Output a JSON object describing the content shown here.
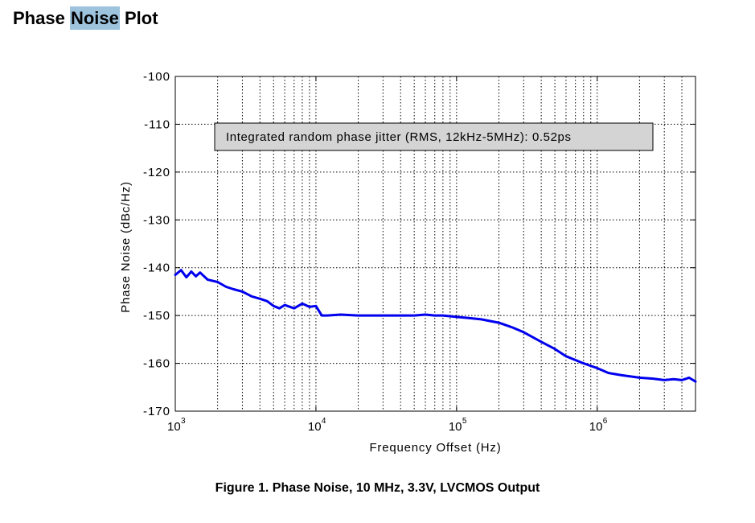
{
  "page": {
    "heading_parts": [
      "Phase",
      "Noise",
      "Plot"
    ],
    "highlight_color": "#9ec3dd",
    "caption": "Figure 1. Phase Noise, 10 MHz, 3.3V, LVCMOS Output"
  },
  "chart_data": {
    "type": "line",
    "title": "",
    "xlabel": "Frequency Offset (Hz)",
    "ylabel": "Phase Noise (dBc/Hz)",
    "x_scale": "log",
    "xlim": [
      1000,
      5000000
    ],
    "ylim": [
      -170,
      -100
    ],
    "x_ticks": [
      {
        "base": "10",
        "exp": "3"
      },
      {
        "base": "10",
        "exp": "4"
      },
      {
        "base": "10",
        "exp": "5"
      },
      {
        "base": "10",
        "exp": "6"
      }
    ],
    "y_ticks": [
      "-100",
      "-110",
      "-120",
      "-130",
      "-140",
      "-150",
      "-160",
      "-170"
    ],
    "grid": true,
    "annotation": "Integrated random phase jitter (RMS, 12kHz-5MHz): 0.52ps",
    "series": [
      {
        "color": "#0000ee",
        "x": [
          1000,
          1100,
          1200,
          1300,
          1400,
          1500,
          1700,
          2000,
          2300,
          2600,
          3000,
          3500,
          4000,
          4500,
          5000,
          5500,
          6000,
          7000,
          8000,
          9000,
          10000,
          11000,
          12000,
          15000,
          20000,
          30000,
          40000,
          50000,
          60000,
          70000,
          80000,
          100000,
          120000,
          150000,
          200000,
          250000,
          300000,
          400000,
          500000,
          600000,
          800000,
          1000000,
          1200000,
          1500000,
          2000000,
          2500000,
          3000000,
          3500000,
          4000000,
          4500000,
          5000000
        ],
        "y": [
          -141.5,
          -140.5,
          -142.0,
          -140.8,
          -141.8,
          -141.0,
          -142.5,
          -143.0,
          -144.0,
          -144.5,
          -145.0,
          -146.0,
          -146.5,
          -147.0,
          -148.0,
          -148.5,
          -147.8,
          -148.5,
          -147.5,
          -148.2,
          -148.0,
          -150.0,
          -150.0,
          -149.8,
          -150.0,
          -150.0,
          -150.0,
          -150.0,
          -149.8,
          -150.0,
          -150.0,
          -150.3,
          -150.5,
          -150.8,
          -151.5,
          -152.5,
          -153.5,
          -155.5,
          -157.0,
          -158.5,
          -160.0,
          -161.0,
          -162.0,
          -162.5,
          -163.0,
          -163.2,
          -163.5,
          -163.3,
          -163.5,
          -163.0,
          -163.8
        ]
      }
    ]
  }
}
